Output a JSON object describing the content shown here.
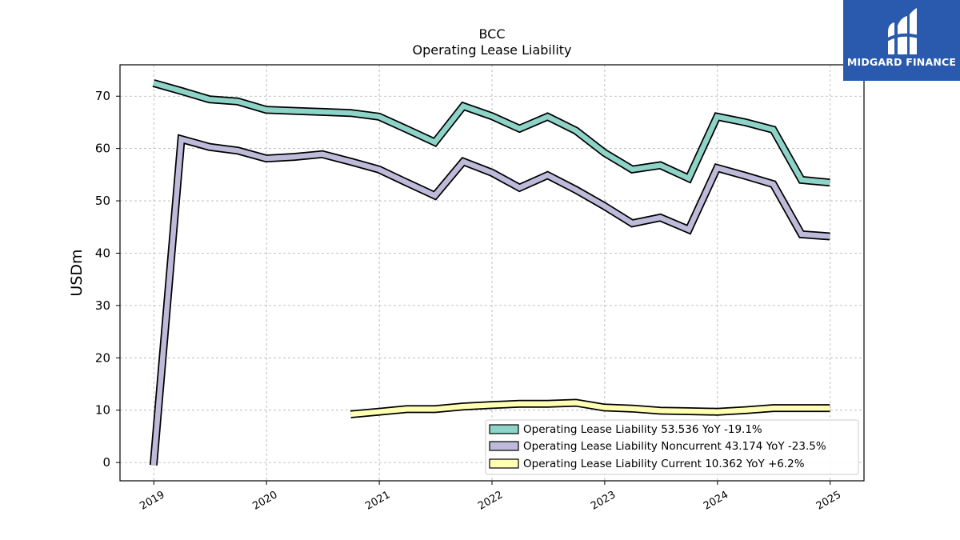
{
  "chart_data": {
    "type": "line",
    "title": "BCC",
    "subtitle": "Operating Lease Liability",
    "ylabel": "USDm",
    "xlabel": "",
    "ylim": [
      -3.5,
      76
    ],
    "xlim": [
      2018.7,
      2025.3
    ],
    "yticks": [
      0,
      10,
      20,
      30,
      40,
      50,
      60,
      70
    ],
    "xticks": [
      "2019",
      "2020",
      "2021",
      "2022",
      "2023",
      "2024",
      "2025"
    ],
    "grid": true,
    "legend_position": "lower-right",
    "series": [
      {
        "name": "Operating Lease Liability",
        "legend_label": "Operating Lease Liability  53.536 YoY -19.1%",
        "color": "#8dd3c7",
        "x": [
          "2018-12-31",
          "2019-03-31",
          "2019-06-30",
          "2019-09-30",
          "2019-12-31",
          "2020-03-31",
          "2020-06-30",
          "2020-09-30",
          "2020-12-31",
          "2021-03-31",
          "2021-06-30",
          "2021-09-30",
          "2021-12-31",
          "2022-03-31",
          "2022-06-30",
          "2022-09-30",
          "2022-12-31",
          "2023-03-31",
          "2023-06-30",
          "2023-09-30",
          "2023-12-31",
          "2024-03-31",
          "2024-06-30",
          "2024-09-30",
          "2024-12-31"
        ],
        "values": [
          72.5,
          71.0,
          69.4,
          69.0,
          67.4,
          67.2,
          67.0,
          66.8,
          66.1,
          63.7,
          61.2,
          68.1,
          66.2,
          63.8,
          66.1,
          63.4,
          59.2,
          56.0,
          56.8,
          54.3,
          66.1,
          65.0,
          63.6,
          54.0,
          53.5
        ]
      },
      {
        "name": "Operating Lease Liability Noncurrent",
        "legend_label": "Operating Lease Liability Noncurrent  43.174 YoY -23.5%",
        "color": "#bebada",
        "x": [
          "2018-12-31",
          "2019-03-31",
          "2019-06-30",
          "2019-09-30",
          "2019-12-31",
          "2020-03-31",
          "2020-06-30",
          "2020-09-30",
          "2020-12-31",
          "2021-03-31",
          "2021-06-30",
          "2021-09-30",
          "2021-12-31",
          "2022-03-31",
          "2022-06-30",
          "2022-09-30",
          "2022-12-31",
          "2023-03-31",
          "2023-06-30",
          "2023-09-30",
          "2023-12-31",
          "2024-03-31",
          "2024-06-30",
          "2024-09-30",
          "2024-12-31"
        ],
        "values": [
          -0.5,
          61.8,
          60.3,
          59.6,
          58.1,
          58.4,
          58.9,
          57.5,
          56.0,
          53.5,
          51.0,
          57.5,
          55.4,
          52.5,
          54.9,
          52.1,
          49.0,
          45.7,
          46.8,
          44.5,
          56.3,
          54.8,
          53.2,
          43.6,
          43.2
        ]
      },
      {
        "name": "Operating Lease Liability Current",
        "legend_label": "Operating Lease Liability Current  10.362 YoY +6.2%",
        "color": "#ffffb3",
        "x": [
          "2020-09-30",
          "2020-12-31",
          "2021-03-31",
          "2021-06-30",
          "2021-09-30",
          "2021-12-31",
          "2022-03-31",
          "2022-06-30",
          "2022-09-30",
          "2022-12-31",
          "2023-03-31",
          "2023-06-30",
          "2023-09-30",
          "2023-12-31",
          "2024-03-31",
          "2024-06-30",
          "2024-09-30",
          "2024-12-31"
        ],
        "values": [
          9.2,
          9.7,
          10.2,
          10.2,
          10.7,
          11.0,
          11.2,
          11.2,
          11.4,
          10.5,
          10.3,
          9.9,
          9.8,
          9.7,
          10.0,
          10.4,
          10.4,
          10.4
        ]
      }
    ]
  },
  "logo": {
    "text": "MIDGARD FINANCE"
  }
}
